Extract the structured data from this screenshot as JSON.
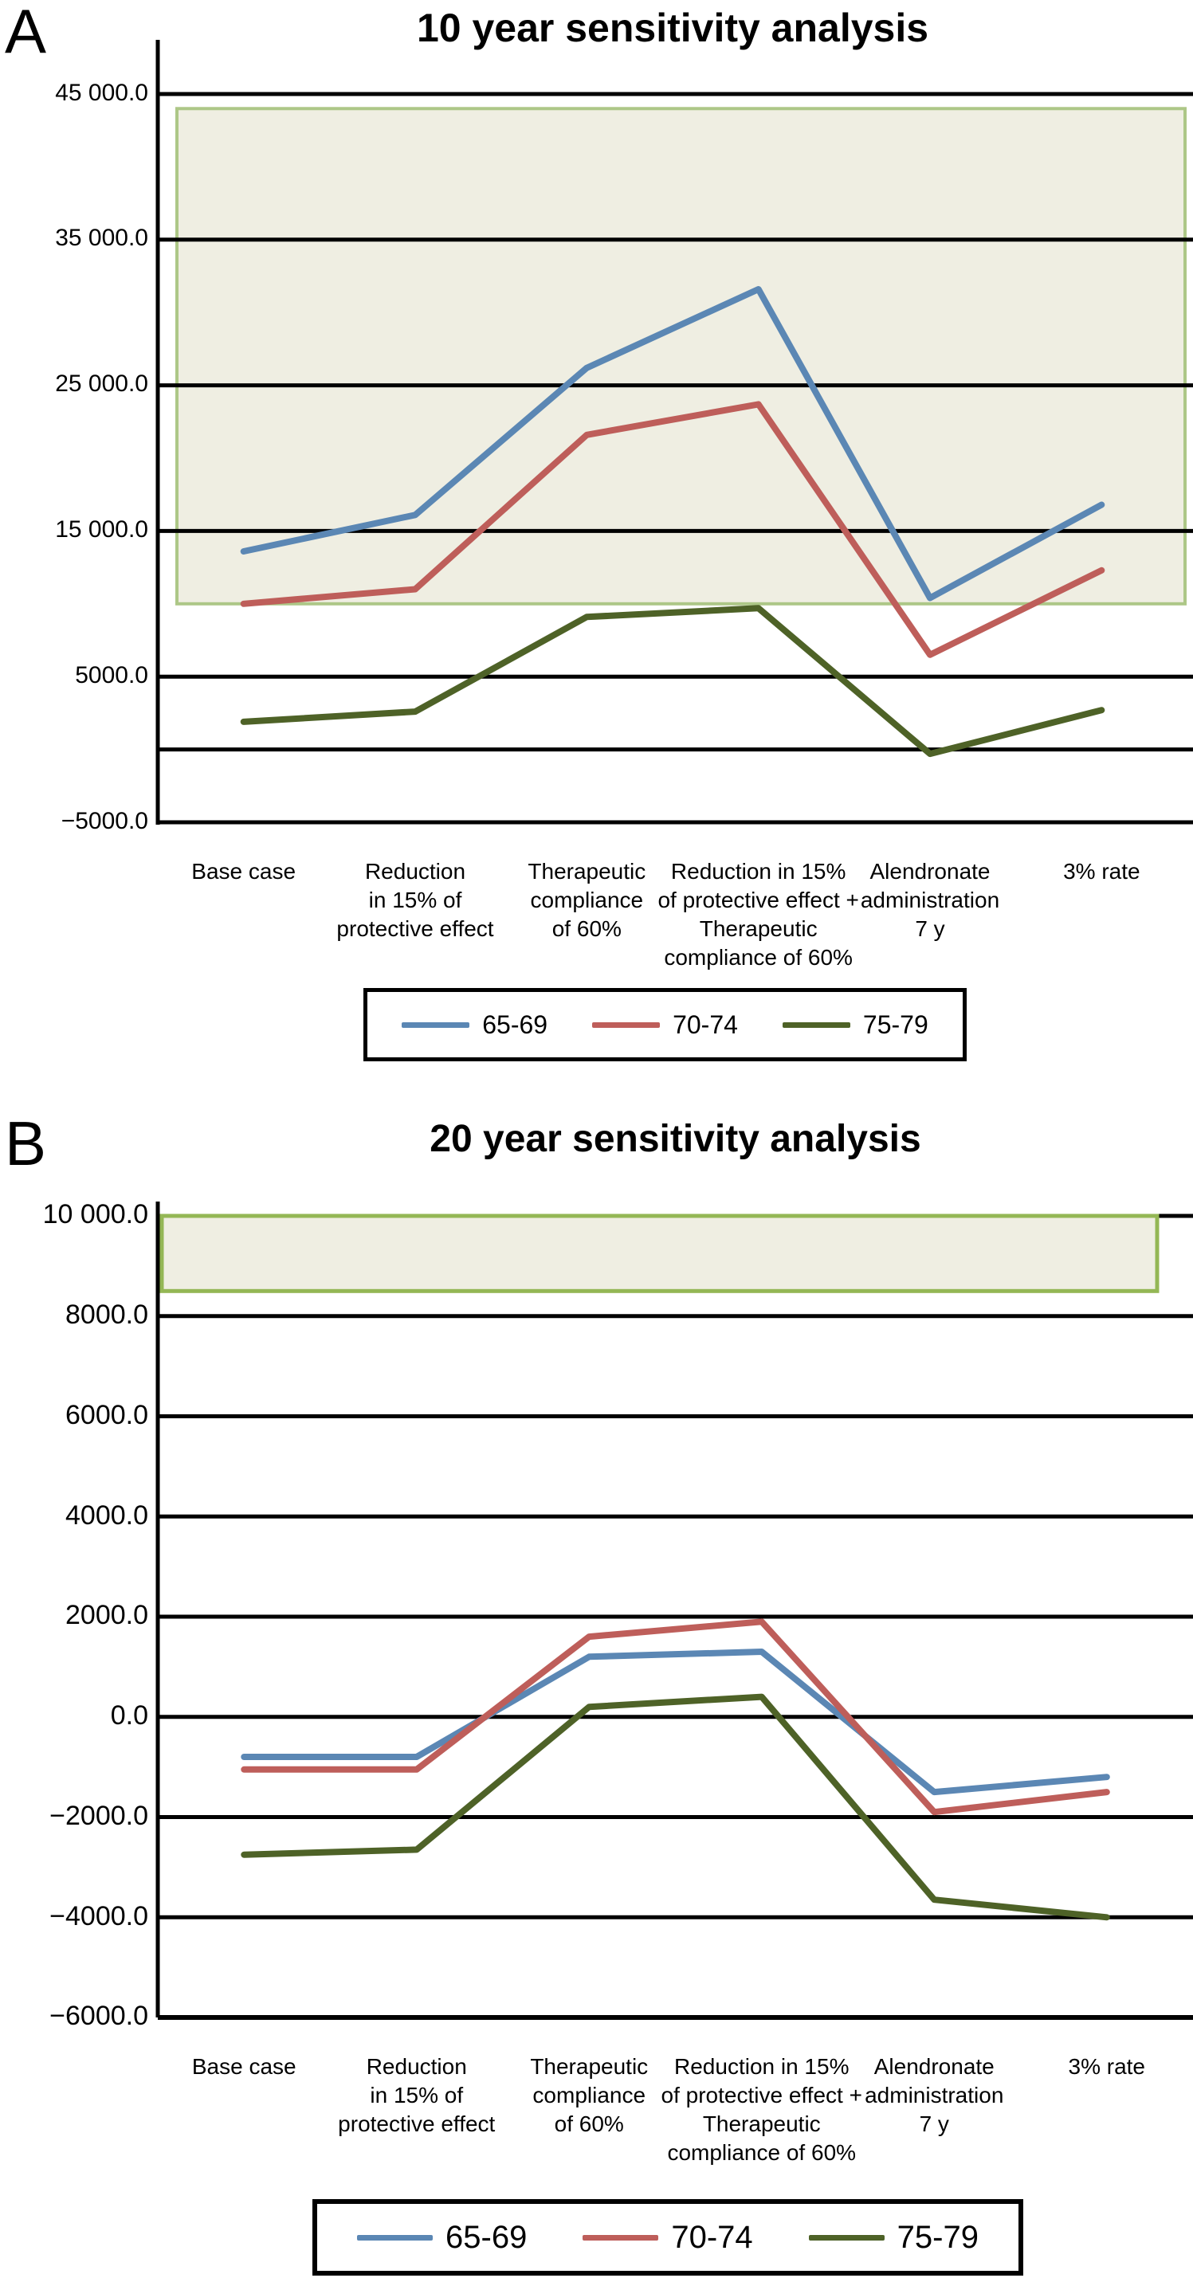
{
  "chart_data": [
    {
      "type": "line",
      "panel_label": "A",
      "title": "10 year sensitivity analysis",
      "xlabel": "",
      "ylabel": "",
      "ylim": [
        -5000,
        45000
      ],
      "grid": true,
      "legend_position": "bottom",
      "y_ticks": [
        {
          "label": "45 000.0",
          "value": 45000
        },
        {
          "label": "35 000.0",
          "value": 35000
        },
        {
          "label": "25 000.0",
          "value": 25000
        },
        {
          "label": "15 000.0",
          "value": 15000
        },
        {
          "label": "5000.0",
          "value": 5000
        },
        {
          "label": "−5000.0",
          "value": -5000
        }
      ],
      "gridline_values": [
        45000,
        35000,
        25000,
        15000,
        5000,
        0,
        -5000
      ],
      "categories": [
        {
          "label": "Base case",
          "lines": [
            "Base case"
          ]
        },
        {
          "label": "Reduction in 15% of protective effect",
          "lines": [
            "Reduction",
            "in 15% of",
            "protective effect"
          ]
        },
        {
          "label": "Therapeutic compliance of 60%",
          "lines": [
            "Therapeutic",
            "compliance",
            "of 60%"
          ]
        },
        {
          "label": "Reduction in 15% of protective effect + Therapeutic compliance of 60%",
          "lines": [
            "Reduction in 15%",
            "of protective effect +",
            "Therapeutic",
            "compliance of 60%"
          ]
        },
        {
          "label": "Alendronate administration 7 y",
          "lines": [
            "Alendronate",
            "administration",
            "7 y"
          ]
        },
        {
          "label": "3% rate",
          "lines": [
            "3% rate"
          ]
        }
      ],
      "series": [
        {
          "name": "65-69",
          "color": "#5B87B4",
          "values": [
            13600,
            16100,
            26200,
            31600,
            10400,
            16800
          ]
        },
        {
          "name": "70-74",
          "color": "#BE5E5A",
          "values": [
            10000,
            11000,
            21600,
            23700,
            6500,
            12300
          ]
        },
        {
          "name": "75-79",
          "color": "#4E6227",
          "values": [
            1900,
            2600,
            9100,
            9700,
            -300,
            2700
          ]
        }
      ],
      "shaded_region": {
        "from": 10000,
        "to": 44000,
        "fill": "#EFEEE2",
        "border": "#ADC787"
      }
    },
    {
      "type": "line",
      "panel_label": "B",
      "title": "20 year sensitivity analysis",
      "xlabel": "",
      "ylabel": "",
      "ylim": [
        -6000,
        10000
      ],
      "grid": true,
      "legend_position": "bottom",
      "y_ticks": [
        {
          "label": "10 000.0",
          "value": 10000
        },
        {
          "label": "8000.0",
          "value": 8000
        },
        {
          "label": "6000.0",
          "value": 6000
        },
        {
          "label": "4000.0",
          "value": 4000
        },
        {
          "label": "2000.0",
          "value": 2000
        },
        {
          "label": "0.0",
          "value": 0
        },
        {
          "label": "−2000.0",
          "value": -2000
        },
        {
          "label": "−4000.0",
          "value": -4000
        },
        {
          "label": "−6000.0",
          "value": -6000
        }
      ],
      "gridline_values": [
        10000,
        8000,
        6000,
        4000,
        2000,
        0,
        -2000,
        -4000,
        -6000
      ],
      "categories": [
        {
          "label": "Base case",
          "lines": [
            "Base case"
          ]
        },
        {
          "label": "Reduction in 15% of protective effect",
          "lines": [
            "Reduction",
            "in 15% of",
            "protective effect"
          ]
        },
        {
          "label": "Therapeutic compliance of 60%",
          "lines": [
            "Therapeutic",
            "compliance",
            "of 60%"
          ]
        },
        {
          "label": "Reduction in 15% of protective effect + Therapeutic compliance of 60%",
          "lines": [
            "Reduction in 15%",
            "of protective effect +",
            "Therapeutic",
            "compliance of 60%"
          ]
        },
        {
          "label": "Alendronate administration 7 y",
          "lines": [
            "Alendronate",
            "administration",
            "7 y"
          ]
        },
        {
          "label": "3% rate",
          "lines": [
            "3% rate"
          ]
        }
      ],
      "series": [
        {
          "name": "65-69",
          "color": "#5B87B4",
          "values": [
            -800,
            -800,
            1200,
            1300,
            -1500,
            -1200
          ]
        },
        {
          "name": "70-74",
          "color": "#BE5E5A",
          "values": [
            -1050,
            -1050,
            1600,
            1900,
            -1900,
            -1500
          ]
        },
        {
          "name": "75-79",
          "color": "#4E6227",
          "values": [
            -2750,
            -2650,
            200,
            400,
            -3650,
            -4000
          ]
        }
      ],
      "shaded_region": {
        "from": 8500,
        "to": 10000,
        "fill": "#EFEEE2",
        "border": "#94B755"
      }
    }
  ]
}
